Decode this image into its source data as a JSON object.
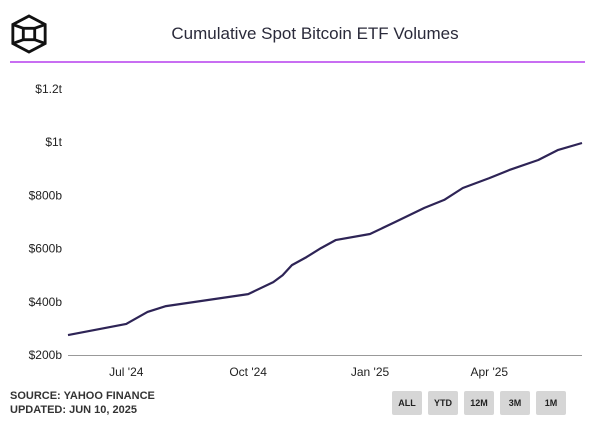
{
  "header": {
    "title": "Cumulative Spot Bitcoin ETF Volumes",
    "logo": "cube-logo",
    "accent": "#c86ef2"
  },
  "footer": {
    "source": "SOURCE: YAHOO FINANCE",
    "updated": "UPDATED: JUN 10, 2025"
  },
  "range_buttons": [
    "ALL",
    "YTD",
    "12M",
    "3M",
    "1M"
  ],
  "chart_data": {
    "type": "line",
    "title": "Cumulative Spot Bitcoin ETF Volumes",
    "xlabel": "",
    "ylabel": "",
    "x_ticks": [
      {
        "date": "2024-07-01",
        "label": "Jul '24"
      },
      {
        "date": "2024-10-01",
        "label": "Oct '24"
      },
      {
        "date": "2025-01-01",
        "label": "Jan '25"
      },
      {
        "date": "2025-04-01",
        "label": "Apr '25"
      }
    ],
    "y_ticks": [
      {
        "value": 200,
        "label": "$200b"
      },
      {
        "value": 400,
        "label": "$400b"
      },
      {
        "value": 600,
        "label": "$600b"
      },
      {
        "value": 800,
        "label": "$800b"
      },
      {
        "value": 1000,
        "label": "$1t"
      },
      {
        "value": 1200,
        "label": "$1.2t"
      }
    ],
    "ylim": [
      200,
      1200
    ],
    "xlim": [
      "2024-05-18",
      "2025-06-10"
    ],
    "y_unit": "billions USD",
    "grid": false,
    "line_color": "#2e2456",
    "series": [
      {
        "points": [
          [
            "2024-05-18",
            275
          ],
          [
            "2024-07-01",
            317
          ],
          [
            "2024-07-17",
            362
          ],
          [
            "2024-07-31",
            384
          ],
          [
            "2024-10-01",
            429
          ],
          [
            "2024-10-20",
            474
          ],
          [
            "2024-10-27",
            500
          ],
          [
            "2024-11-03",
            538
          ],
          [
            "2024-11-14",
            568
          ],
          [
            "2024-11-25",
            602
          ],
          [
            "2024-12-06",
            632
          ],
          [
            "2025-01-01",
            655
          ],
          [
            "2025-01-20",
            700
          ],
          [
            "2025-02-11",
            753
          ],
          [
            "2025-02-26",
            783
          ],
          [
            "2025-03-12",
            828
          ],
          [
            "2025-04-01",
            865
          ],
          [
            "2025-04-16",
            895
          ],
          [
            "2025-05-08",
            933
          ],
          [
            "2025-05-23",
            971
          ],
          [
            "2025-06-10",
            997
          ]
        ]
      }
    ]
  }
}
